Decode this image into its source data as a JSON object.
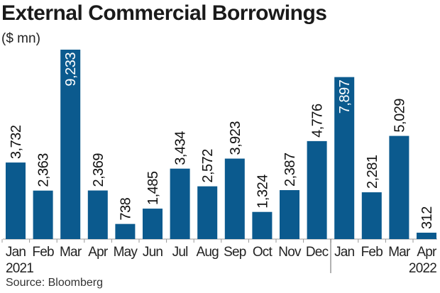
{
  "chart_data": {
    "type": "bar",
    "title": "External Commercial Borrowings",
    "ylabel": "($ mn)",
    "categories": [
      "Jan",
      "Feb",
      "Mar",
      "Apr",
      "May",
      "Jun",
      "Jul",
      "Aug",
      "Sep",
      "Oct",
      "Nov",
      "Dec",
      "Jan",
      "Feb",
      "Mar",
      "Apr"
    ],
    "year_labels": [
      "2021",
      "2022"
    ],
    "values": [
      3732,
      2363,
      9233,
      2369,
      738,
      1485,
      3434,
      2572,
      3923,
      1324,
      2387,
      4776,
      7897,
      2281,
      5029,
      312
    ],
    "value_labels": [
      "3,732",
      "2,363",
      "9,233",
      "2,369",
      "738",
      "1,485",
      "3,434",
      "2,572",
      "3,923",
      "1,324",
      "2,387",
      "4,776",
      "7,897",
      "2,281",
      "5,029",
      "312"
    ],
    "ylim": [
      0,
      9233
    ],
    "grid": false,
    "bar_color": "#0b5a8e",
    "source": "Source: Bloomberg"
  }
}
